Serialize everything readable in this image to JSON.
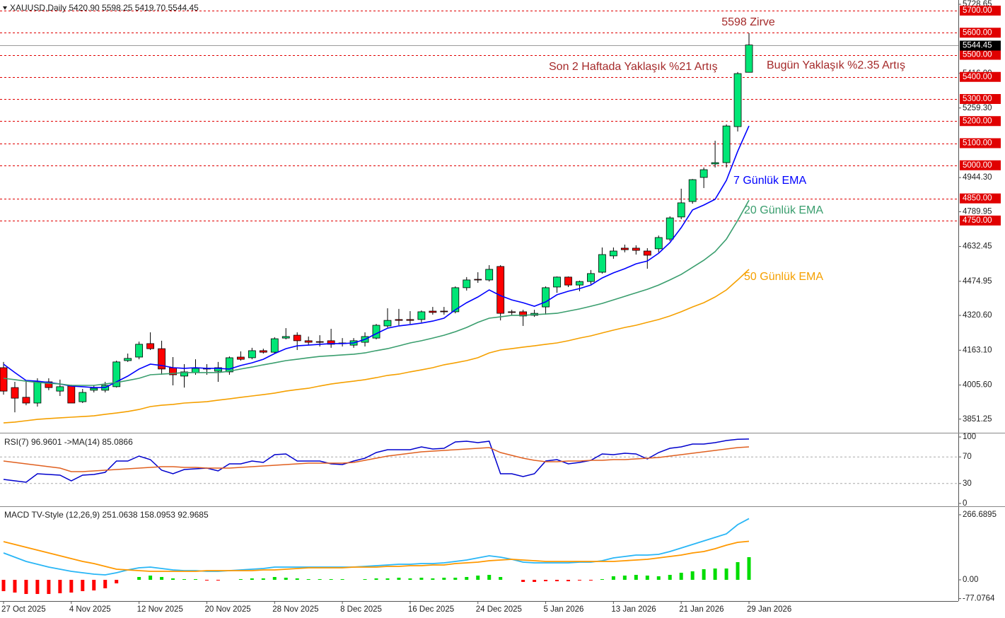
{
  "chart_data": [
    {
      "type": "candlestick",
      "title": "XAUUSD,Daily  5420.90 5598.25 5419.70 5544.45",
      "categories": [
        "27 Oct 2025",
        null,
        null,
        null,
        null,
        null,
        "4 Nov 2025",
        null,
        null,
        null,
        null,
        null,
        "12 Nov 2025",
        null,
        null,
        null,
        null,
        null,
        "20 Nov 2025",
        null,
        null,
        null,
        null,
        null,
        "28 Nov 2025",
        null,
        null,
        null,
        null,
        null,
        "8 Dec 2025",
        null,
        null,
        null,
        null,
        null,
        "16 Dec 2025",
        null,
        null,
        null,
        null,
        null,
        "24 Dec 2025",
        null,
        null,
        null,
        null,
        null,
        "5 Jan 2026",
        null,
        null,
        null,
        null,
        null,
        "13 Jan 2026",
        null,
        null,
        null,
        null,
        null,
        "21 Jan 2026",
        null,
        null,
        null,
        null,
        null,
        "29 Jan 2026"
      ],
      "candles": {
        "open": [
          4084,
          3994,
          3950,
          3924,
          4020,
          3978,
          4001,
          3930,
          3982,
          3982,
          3998,
          4116,
          4132,
          4193,
          4170,
          4084,
          4046,
          4062,
          4078,
          4068,
          4065,
          4132,
          4129,
          4161,
          4154,
          4218,
          4231,
          4206,
          4202,
          4206,
          4196,
          4186,
          4199,
          4218,
          4273,
          4302,
          4302,
          4302,
          4340,
          4340,
          4337,
          4446,
          4484,
          4481,
          4542,
          4337,
          4337,
          4321,
          4359,
          4449,
          4494,
          4458,
          4474,
          4516,
          4590,
          4625,
          4625,
          4612,
          4622,
          4666,
          4766,
          4836,
          4945,
          5006,
          5012,
          5175,
          5420.9
        ],
        "high": [
          4110,
          4020,
          4026,
          4036,
          4036,
          4030,
          4007,
          3988,
          4004,
          4020,
          4116,
          4148,
          4202,
          4244,
          4206,
          4132,
          4100,
          4122,
          4100,
          4110,
          4135,
          4158,
          4174,
          4170,
          4222,
          4263,
          4244,
          4225,
          4231,
          4260,
          4218,
          4218,
          4244,
          4282,
          4353,
          4350,
          4340,
          4343,
          4359,
          4359,
          4452,
          4494,
          4516,
          4548,
          4548,
          4346,
          4346,
          4346,
          4452,
          4497,
          4497,
          4478,
          4526,
          4628,
          4628,
          4641,
          4638,
          4625,
          4682,
          4769,
          4894,
          4938,
          4990,
          5111,
          5185,
          5422,
          5598.25
        ],
        "low": [
          3962,
          3882,
          3914,
          3908,
          3982,
          3956,
          3924,
          3924,
          3972,
          3972,
          3994,
          4110,
          4122,
          4164,
          4052,
          4004,
          3994,
          4052,
          4052,
          4020,
          4052,
          4116,
          4122,
          4148,
          4148,
          4212,
          4164,
          4186,
          4180,
          4174,
          4180,
          4174,
          4180,
          4212,
          4266,
          4276,
          4282,
          4289,
          4324,
          4324,
          4330,
          4433,
          4468,
          4474,
          4298,
          4321,
          4273,
          4314,
          4324,
          4423,
          4449,
          4430,
          4462,
          4510,
          4577,
          4606,
          4596,
          4532,
          4606,
          4657,
          4756,
          4826,
          4897,
          4990,
          4990,
          5153,
          5419.7
        ],
        "close": [
          3978,
          3946,
          3924,
          4020,
          3994,
          3998,
          3924,
          3972,
          3991,
          4004,
          4110,
          4126,
          4190,
          4170,
          4078,
          4052,
          4065,
          4081,
          4081,
          4084,
          4129,
          4122,
          4161,
          4154,
          4215,
          4225,
          4206,
          4199,
          4199,
          4190,
          4193,
          4206,
          4225,
          4276,
          4298,
          4298,
          4298,
          4337,
          4334,
          4337,
          4446,
          4481,
          4481,
          4529,
          4330,
          4334,
          4318,
          4330,
          4446,
          4494,
          4458,
          4474,
          4510,
          4596,
          4612,
          4618,
          4615,
          4593,
          4673,
          4762,
          4830,
          4935,
          4980,
          5012,
          5178,
          5415,
          5544.45
        ],
        "up_color": "#00e676",
        "down_color": "#ff0000"
      },
      "series": [
        {
          "name": "7 Günlük EMA",
          "color": "#0000ff",
          "values": [
            4100,
            4062,
            4026,
            4023,
            4017,
            4010,
            4001,
            3998,
            3994,
            3994,
            4020,
            4046,
            4078,
            4100,
            4094,
            4084,
            4081,
            4084,
            4081,
            4081,
            4078,
            4094,
            4106,
            4122,
            4148,
            4170,
            4183,
            4186,
            4190,
            4193,
            4193,
            4196,
            4212,
            4238,
            4263,
            4273,
            4279,
            4286,
            4295,
            4308,
            4346,
            4378,
            4404,
            4436,
            4410,
            4391,
            4378,
            4362,
            4382,
            4414,
            4430,
            4442,
            4458,
            4490,
            4513,
            4532,
            4554,
            4567,
            4602,
            4650,
            4718,
            4798,
            4820,
            4846,
            4932,
            5063,
            5178
          ]
        },
        {
          "name": "20 Günlük EMA",
          "color": "#3a9e6e",
          "values": [
            4036,
            4030,
            4023,
            4017,
            4014,
            4010,
            4004,
            4004,
            4004,
            4010,
            4017,
            4026,
            4036,
            4052,
            4055,
            4058,
            4062,
            4062,
            4062,
            4062,
            4068,
            4078,
            4087,
            4097,
            4106,
            4116,
            4122,
            4129,
            4135,
            4138,
            4142,
            4145,
            4151,
            4161,
            4170,
            4183,
            4196,
            4206,
            4218,
            4231,
            4247,
            4266,
            4289,
            4308,
            4314,
            4321,
            4321,
            4324,
            4327,
            4330,
            4340,
            4350,
            4362,
            4375,
            4391,
            4407,
            4423,
            4439,
            4458,
            4481,
            4506,
            4538,
            4570,
            4609,
            4666,
            4750,
            4842
          ]
        },
        {
          "name": "50 Günlük EMA",
          "color": "#f5a000",
          "values": [
            3834,
            3838,
            3844,
            3850,
            3854,
            3857,
            3860,
            3863,
            3866,
            3873,
            3879,
            3886,
            3895,
            3908,
            3914,
            3918,
            3924,
            3927,
            3930,
            3937,
            3943,
            3950,
            3956,
            3962,
            3969,
            3978,
            3985,
            3991,
            4001,
            4010,
            4017,
            4023,
            4030,
            4039,
            4049,
            4055,
            4065,
            4074,
            4084,
            4097,
            4106,
            4116,
            4129,
            4151,
            4164,
            4170,
            4177,
            4183,
            4190,
            4196,
            4206,
            4218,
            4228,
            4241,
            4254,
            4266,
            4276,
            4289,
            4302,
            4318,
            4337,
            4359,
            4378,
            4404,
            4436,
            4481,
            4529
          ]
        }
      ],
      "ylim": [
        3828,
        5748
      ],
      "yticks": [
        5728.65,
        {
          "value": 5416,
          "label": "5416.00"
        },
        {
          "value": 5259.3,
          "label": "5259.30"
        },
        {
          "value": 4944.3,
          "label": "4944.30"
        },
        4789.95,
        4632.45,
        4474.95,
        {
          "value": 4320.6,
          "label": "4320.60"
        },
        {
          "value": 4163.1,
          "label": "4163.10"
        },
        {
          "value": 4005.6,
          "label": "4005.60"
        },
        3851.25
      ],
      "levels": [
        {
          "value": 5700,
          "label": "5700.00"
        },
        {
          "value": 5600,
          "label": "5600.00"
        },
        {
          "value": 5500,
          "label": "5500.00"
        },
        {
          "value": 5400,
          "label": "5400.00"
        },
        {
          "value": 5300,
          "label": "5300.00"
        },
        {
          "value": 5200,
          "label": "5200.00"
        },
        {
          "value": 5100,
          "label": "5100.00"
        },
        {
          "value": 5000,
          "label": "5000.00"
        },
        {
          "value": 4850,
          "label": "4850.00"
        },
        {
          "value": 4750,
          "label": "4750.00"
        }
      ],
      "level_color": "#e00000",
      "last_price": 5544.45,
      "annotations": [
        {
          "text": "5598 Zirve",
          "color": "#a52a2a"
        },
        {
          "text": "Son 2 Haftada Yaklaşık %21 Artış",
          "color": "#a52a2a"
        },
        {
          "text": "Bugün Yaklaşık %2.35  Artış",
          "color": "#a52a2a"
        }
      ]
    },
    {
      "type": "line",
      "title": "RSI(7) 96.9601  ->MA(14) 85.0866",
      "series": [
        {
          "color": "#0000cd",
          "values": [
            36.2,
            34.0,
            31.9,
            44.7,
            43.6,
            42.6,
            34.0,
            42.6,
            43.6,
            46.8,
            63.8,
            63.8,
            71.3,
            66.0,
            50.0,
            44.7,
            51.1,
            52.1,
            53.2,
            48.9,
            59.6,
            59.6,
            63.8,
            61.7,
            73.4,
            74.5,
            63.8,
            63.8,
            63.8,
            59.6,
            58.5,
            63.8,
            68.1,
            76.6,
            80.9,
            80.9,
            80.9,
            85.1,
            81.9,
            83.0,
            92.6,
            93.6,
            91.5,
            93.6,
            44.7,
            44.7,
            40.4,
            44.7,
            63.8,
            66.0,
            59.6,
            61.7,
            64.9,
            74.5,
            73.4,
            75.5,
            74.5,
            67.0,
            76.6,
            83.0,
            85.1,
            89.4,
            89.4,
            91.5,
            94.7,
            96.5,
            96.9601
          ]
        },
        {
          "color": "#e06020",
          "values": [
            63.8,
            61.7,
            59.6,
            57.4,
            55.3,
            53.2,
            47.9,
            47.9,
            48.9,
            50.0,
            51.1,
            52.1,
            53.2,
            54.3,
            55.3,
            55.3,
            54.3,
            54.3,
            53.2,
            53.2,
            53.2,
            54.3,
            55.3,
            56.4,
            57.4,
            58.5,
            59.6,
            60.6,
            60.6,
            60.6,
            60.6,
            61.7,
            64.9,
            68.1,
            71.3,
            73.4,
            75.5,
            77.7,
            78.7,
            79.8,
            80.9,
            81.9,
            83.0,
            84.0,
            76.6,
            72.3,
            68.1,
            64.9,
            62.8,
            62.8,
            63.8,
            63.8,
            64.9,
            64.9,
            66.0,
            66.0,
            67.0,
            68.1,
            69.1,
            71.3,
            73.4,
            75.5,
            77.7,
            79.8,
            81.9,
            84.0,
            85.0866
          ]
        }
      ],
      "ylim": [
        0,
        100
      ],
      "yticks": [
        100,
        70,
        30,
        0
      ],
      "grid": true
    },
    {
      "type": "macd",
      "title": "MACD TV-Style (12,26,9) 251.0638 158.0953 92.9685",
      "series": [
        {
          "color": "#29b6f6",
          "values": [
            110.2,
            92.8,
            75.4,
            63.8,
            52.2,
            43.5,
            34.8,
            29.0,
            23.2,
            20.3,
            29.0,
            40.6,
            49.3,
            52.2,
            46.4,
            40.6,
            37.7,
            37.7,
            34.8,
            34.8,
            37.7,
            40.6,
            43.5,
            46.4,
            52.2,
            52.2,
            52.2,
            52.2,
            52.2,
            52.2,
            52.2,
            52.2,
            55.1,
            58.0,
            60.9,
            63.8,
            63.8,
            66.7,
            66.7,
            69.6,
            75.4,
            81.2,
            89.9,
            98.6,
            92.8,
            84.1,
            72.5,
            69.6,
            69.6,
            69.6,
            69.6,
            72.5,
            72.5,
            78.3,
            89.9,
            95.7,
            101.5,
            101.5,
            104.4,
            116.0,
            130.5,
            145.0,
            159.5,
            174.0,
            188.5,
            226.2,
            251.0638
          ]
        },
        {
          "color": "#ff9800",
          "values": [
            156.6,
            145.0,
            133.4,
            121.8,
            110.2,
            98.6,
            87.0,
            75.4,
            66.7,
            55.1,
            43.5,
            40.6,
            37.7,
            34.8,
            34.8,
            34.8,
            34.8,
            34.8,
            37.7,
            37.7,
            37.7,
            37.7,
            37.7,
            40.6,
            40.6,
            43.5,
            46.4,
            49.3,
            49.3,
            49.3,
            49.3,
            52.2,
            52.2,
            52.2,
            55.1,
            55.1,
            58.0,
            58.0,
            60.9,
            60.9,
            66.7,
            69.6,
            72.5,
            78.3,
            81.2,
            84.1,
            81.2,
            78.3,
            75.4,
            75.4,
            75.4,
            75.4,
            75.4,
            75.4,
            75.4,
            78.3,
            81.2,
            84.1,
            89.9,
            95.7,
            101.5,
            110.2,
            116.0,
            127.6,
            142.1,
            153.7,
            158.0953
          ]
        }
      ],
      "histogram": {
        "up_color": "#00dd00",
        "down_color": "#ff0000",
        "values": [
          -46.4,
          -52.2,
          -58.0,
          -58.0,
          -58.0,
          -55.1,
          -52.2,
          -46.4,
          -43.5,
          -34.8,
          -14.5,
          0,
          11.6,
          17.4,
          11.6,
          5.8,
          2.9,
          2.9,
          -2.9,
          -2.9,
          0,
          2.9,
          5.8,
          5.8,
          11.6,
          8.7,
          5.8,
          2.9,
          2.9,
          2.9,
          2.9,
          0,
          2.9,
          5.8,
          5.8,
          8.7,
          5.8,
          8.7,
          5.8,
          8.7,
          8.7,
          11.6,
          17.4,
          20.3,
          11.6,
          0,
          -8.7,
          -8.7,
          -5.8,
          -5.8,
          -5.8,
          -2.9,
          -2.9,
          2.9,
          14.5,
          17.4,
          20.3,
          17.4,
          14.5,
          20.3,
          29.0,
          34.8,
          43.5,
          46.4,
          46.4,
          72.5,
          92.9685
        ]
      },
      "ylim": [
        -77.0764,
        266.6895
      ],
      "yticks": [
        266.6895,
        {
          "value": 0,
          "label": "0.00"
        },
        -77.0764
      ],
      "grid": false
    }
  ]
}
